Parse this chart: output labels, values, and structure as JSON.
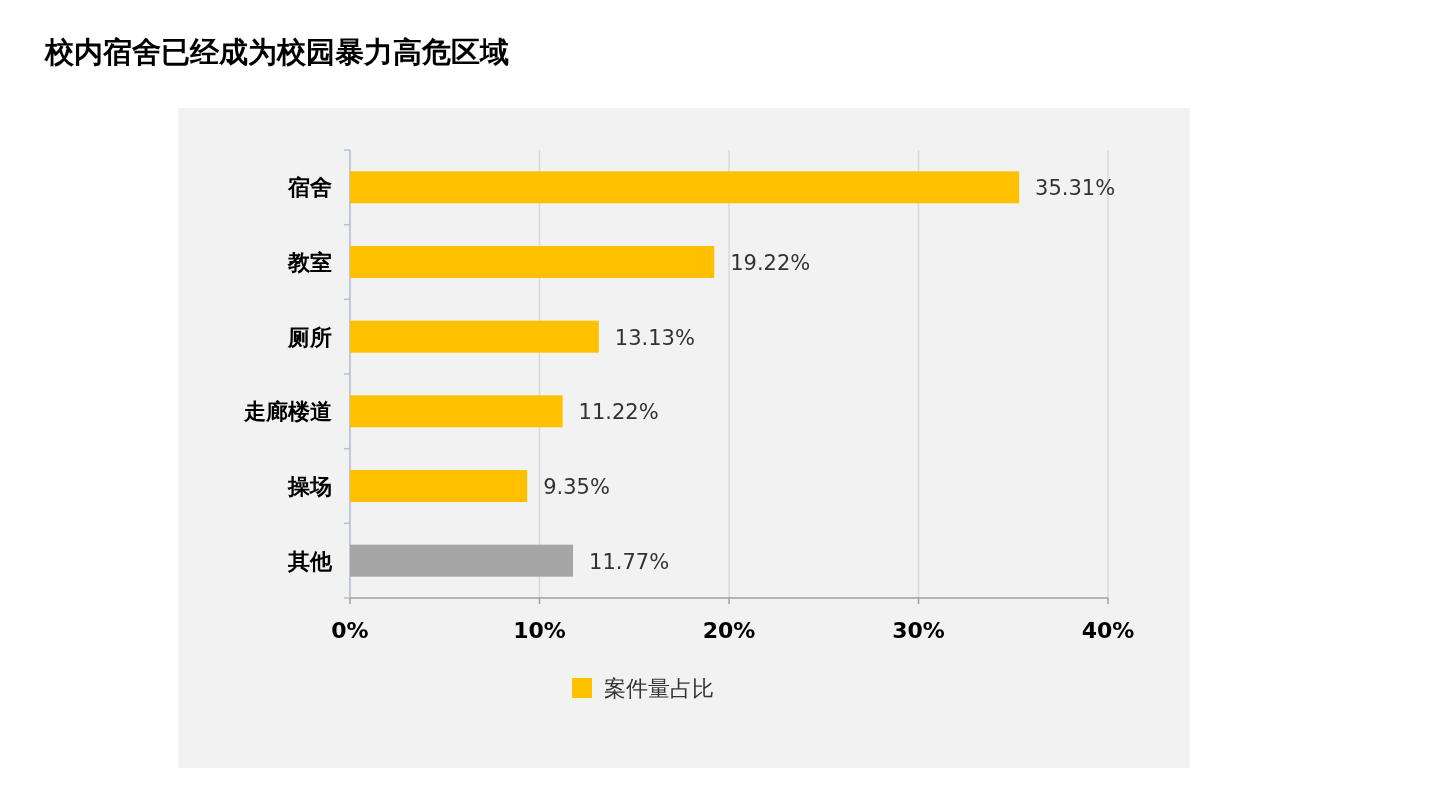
{
  "chart_data": {
    "type": "bar",
    "orientation": "horizontal",
    "title": "校内宿舍已经成为校园暴力高危区域",
    "categories": [
      "宿舍",
      "教室",
      "厕所",
      "走廊楼道",
      "操场",
      "其他"
    ],
    "series": [
      {
        "name": "案件量占比",
        "colors": [
          "#ffc000",
          "#ffc000",
          "#ffc000",
          "#ffc000",
          "#ffc000",
          "#a6a6a6"
        ],
        "values": [
          35.31,
          19.22,
          13.13,
          11.22,
          9.35,
          11.77
        ],
        "value_labels": [
          "35.31%",
          "19.22%",
          "13.13%",
          "11.22%",
          "9.35%",
          "11.77%"
        ]
      }
    ],
    "xlim": [
      0,
      40
    ],
    "xticks": [
      {
        "value": 0,
        "label": "0%"
      },
      {
        "value": 10,
        "label": "10%"
      },
      {
        "value": 20,
        "label": "20%"
      },
      {
        "value": 30,
        "label": "30%"
      },
      {
        "value": 40,
        "label": "40%"
      }
    ],
    "grid": "x",
    "legend": "bottom"
  }
}
